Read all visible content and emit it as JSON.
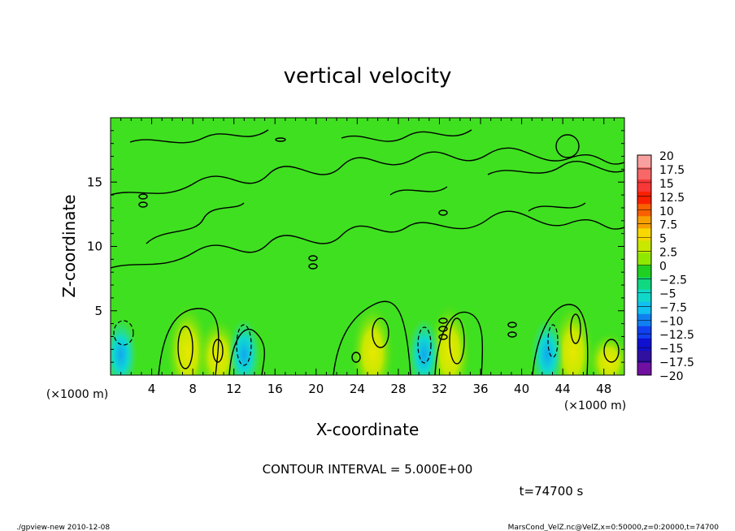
{
  "chart_data": {
    "type": "heatmap",
    "title": "vertical velocity",
    "xlabel": "X-coordinate",
    "ylabel": "Z-coordinate",
    "x_unit_left": "(×1000 m)",
    "x_unit_right": "(×1000 m)",
    "xlim": [
      0,
      50
    ],
    "ylim": [
      0,
      20
    ],
    "x_ticks": [
      4,
      8,
      12,
      16,
      20,
      24,
      28,
      32,
      36,
      40,
      44,
      48
    ],
    "x_tick_labels": [
      "4",
      "8",
      "12",
      "16",
      "20",
      "24",
      "28",
      "32",
      "36",
      "40",
      "44",
      "48"
    ],
    "y_ticks": [
      5,
      10,
      15
    ],
    "y_tick_labels": [
      "5",
      "10",
      "15"
    ],
    "colorbar": {
      "levels": [
        20,
        17.5,
        15,
        12.5,
        10,
        7.5,
        5,
        2.5,
        0,
        -2.5,
        -5,
        -7.5,
        -10,
        -12.5,
        -15,
        -17.5,
        -20
      ],
      "labels": [
        "20",
        "17.5",
        "15",
        "12.5",
        "10",
        "7.5",
        "5",
        "2.5",
        "0",
        "−2.5",
        "−5",
        "−7.5",
        "−10",
        "−12.5",
        "−15",
        "−17.5",
        "−20"
      ],
      "colors": [
        "#f8a0a0",
        "#f86868",
        "#f83838",
        "#f82000",
        "#f86000",
        "#f8a000",
        "#f8d800",
        "#c8e800",
        "#90e800",
        "#20d020",
        "#10d880",
        "#10d8c8",
        "#10c0f0",
        "#1080f0",
        "#1040f0",
        "#1010d0",
        "#3010a0",
        "#7010a0"
      ]
    },
    "updrafts": [
      {
        "x": 7.5,
        "z_top": 5,
        "peak": 7.5
      },
      {
        "x": 10.5,
        "z_top": 4,
        "peak": 5
      },
      {
        "x": 25.5,
        "z_top": 5,
        "peak": 7.5
      },
      {
        "x": 33,
        "z_top": 5,
        "peak": 7.5
      },
      {
        "x": 45,
        "z_top": 5,
        "peak": 7.5
      },
      {
        "x": 48.5,
        "z_top": 3,
        "peak": 5
      }
    ],
    "downdrafts": [
      {
        "x": 1,
        "z_top": 4,
        "peak": -5
      },
      {
        "x": 13,
        "z_top": 4,
        "peak": -7.5
      },
      {
        "x": 30.5,
        "z_top": 4,
        "peak": -5
      },
      {
        "x": 42.5,
        "z_top": 4,
        "peak": -5
      }
    ]
  },
  "annotations": {
    "contour_interval": "CONTOUR INTERVAL = 5.000E+00",
    "time": "t=74700 s",
    "footer_left": "./gpview-new  2010-12-08",
    "footer_right": "MarsCond_VelZ.nc@VelZ,x=0:50000,z=0:20000,t=74700"
  }
}
